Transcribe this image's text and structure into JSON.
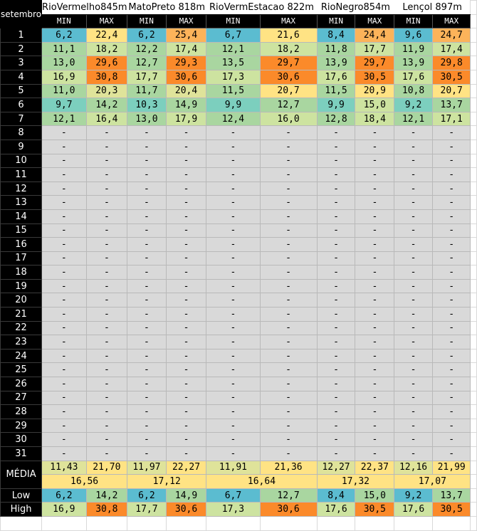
{
  "corner_label": "setembro",
  "stations": [
    {
      "name": "RioVermelho845m"
    },
    {
      "name": "MatoPreto 818m"
    },
    {
      "name": "RioVermEstacao 822m"
    },
    {
      "name": "RioNegro854m"
    },
    {
      "name": "Lençol 897m"
    }
  ],
  "sub_headers": [
    "MIN",
    "MAX"
  ],
  "colors": {
    "blue": "#5bbcd0",
    "teal": "#7ccfbe",
    "green": "#a9d6a0",
    "lightgreen": "#cde3a0",
    "yellowgreen": "#dfe39a",
    "yellow": "#ffe384",
    "orange": "#fcb35a",
    "darkorange": "#fb8a2a",
    "gray": "#d9d9d9",
    "header": "#000000"
  },
  "days": [
    {
      "day": "1",
      "cells": [
        [
          "6,2",
          "blue"
        ],
        [
          "22,4",
          "yellow"
        ],
        [
          "6,2",
          "blue"
        ],
        [
          "25,4",
          "orange"
        ],
        [
          "6,7",
          "blue"
        ],
        [
          "21,6",
          "yellow"
        ],
        [
          "8,4",
          "blue"
        ],
        [
          "24,4",
          "orange"
        ],
        [
          "9,6",
          "blue"
        ],
        [
          "24,7",
          "orange"
        ]
      ]
    },
    {
      "day": "2",
      "cells": [
        [
          "11,1",
          "green"
        ],
        [
          "18,2",
          "lightgreen"
        ],
        [
          "12,2",
          "green"
        ],
        [
          "17,4",
          "lightgreen"
        ],
        [
          "12,1",
          "green"
        ],
        [
          "18,2",
          "lightgreen"
        ],
        [
          "11,8",
          "green"
        ],
        [
          "17,7",
          "lightgreen"
        ],
        [
          "11,9",
          "green"
        ],
        [
          "17,4",
          "lightgreen"
        ]
      ]
    },
    {
      "day": "3",
      "cells": [
        [
          "13,0",
          "green"
        ],
        [
          "29,6",
          "darkorange"
        ],
        [
          "12,7",
          "green"
        ],
        [
          "29,3",
          "darkorange"
        ],
        [
          "13,5",
          "green"
        ],
        [
          "29,7",
          "darkorange"
        ],
        [
          "13,9",
          "green"
        ],
        [
          "29,7",
          "darkorange"
        ],
        [
          "13,9",
          "green"
        ],
        [
          "29,8",
          "darkorange"
        ]
      ]
    },
    {
      "day": "4",
      "cells": [
        [
          "16,9",
          "lightgreen"
        ],
        [
          "30,8",
          "darkorange"
        ],
        [
          "17,7",
          "lightgreen"
        ],
        [
          "30,6",
          "darkorange"
        ],
        [
          "17,3",
          "lightgreen"
        ],
        [
          "30,6",
          "darkorange"
        ],
        [
          "17,6",
          "lightgreen"
        ],
        [
          "30,5",
          "darkorange"
        ],
        [
          "17,6",
          "lightgreen"
        ],
        [
          "30,5",
          "darkorange"
        ]
      ]
    },
    {
      "day": "5",
      "cells": [
        [
          "11,0",
          "green"
        ],
        [
          "20,3",
          "yellowgreen"
        ],
        [
          "11,7",
          "green"
        ],
        [
          "20,4",
          "yellowgreen"
        ],
        [
          "11,5",
          "green"
        ],
        [
          "20,7",
          "yellow"
        ],
        [
          "11,5",
          "green"
        ],
        [
          "20,9",
          "yellow"
        ],
        [
          "10,8",
          "green"
        ],
        [
          "20,7",
          "yellow"
        ]
      ]
    },
    {
      "day": "6",
      "cells": [
        [
          "9,7",
          "teal"
        ],
        [
          "14,2",
          "green"
        ],
        [
          "10,3",
          "teal"
        ],
        [
          "14,9",
          "green"
        ],
        [
          "9,9",
          "teal"
        ],
        [
          "12,7",
          "green"
        ],
        [
          "9,9",
          "teal"
        ],
        [
          "15,0",
          "lightgreen"
        ],
        [
          "9,2",
          "teal"
        ],
        [
          "13,7",
          "green"
        ]
      ]
    },
    {
      "day": "7",
      "cells": [
        [
          "12,1",
          "green"
        ],
        [
          "16,4",
          "lightgreen"
        ],
        [
          "13,0",
          "green"
        ],
        [
          "17,9",
          "lightgreen"
        ],
        [
          "12,4",
          "green"
        ],
        [
          "16,0",
          "lightgreen"
        ],
        [
          "12,8",
          "green"
        ],
        [
          "18,4",
          "lightgreen"
        ],
        [
          "12,1",
          "green"
        ],
        [
          "17,1",
          "lightgreen"
        ]
      ]
    }
  ],
  "empty_days": [
    "8",
    "9",
    "10",
    "11",
    "12",
    "13",
    "14",
    "15",
    "16",
    "17",
    "18",
    "19",
    "20",
    "21",
    "22",
    "23",
    "24",
    "25",
    "26",
    "27",
    "28",
    "29",
    "30",
    "31"
  ],
  "dash": "-",
  "media": {
    "label": "MÉDIA",
    "cells": [
      [
        "11,43",
        "yellowgreen"
      ],
      [
        "21,70",
        "yellow"
      ],
      [
        "11,97",
        "yellowgreen"
      ],
      [
        "22,27",
        "yellow"
      ],
      [
        "11,91",
        "yellowgreen"
      ],
      [
        "21,36",
        "yellow"
      ],
      [
        "12,27",
        "yellowgreen"
      ],
      [
        "22,37",
        "yellow"
      ],
      [
        "12,16",
        "yellowgreen"
      ],
      [
        "21,99",
        "yellow"
      ]
    ],
    "avg": [
      "16,56",
      "17,12",
      "16,64",
      "17,32",
      "17,07"
    ]
  },
  "low": {
    "label": "Low",
    "cells": [
      [
        "6,2",
        "blue"
      ],
      [
        "14,2",
        "green"
      ],
      [
        "6,2",
        "blue"
      ],
      [
        "14,9",
        "green"
      ],
      [
        "6,7",
        "blue"
      ],
      [
        "12,7",
        "green"
      ],
      [
        "8,4",
        "blue"
      ],
      [
        "15,0",
        "green"
      ],
      [
        "9,2",
        "blue"
      ],
      [
        "13,7",
        "green"
      ]
    ]
  },
  "high": {
    "label": "High",
    "cells": [
      [
        "16,9",
        "lightgreen"
      ],
      [
        "30,8",
        "darkorange"
      ],
      [
        "17,7",
        "lightgreen"
      ],
      [
        "30,6",
        "darkorange"
      ],
      [
        "17,3",
        "lightgreen"
      ],
      [
        "30,6",
        "darkorange"
      ],
      [
        "17,6",
        "lightgreen"
      ],
      [
        "30,5",
        "darkorange"
      ],
      [
        "17,6",
        "lightgreen"
      ],
      [
        "30,5",
        "darkorange"
      ]
    ]
  }
}
